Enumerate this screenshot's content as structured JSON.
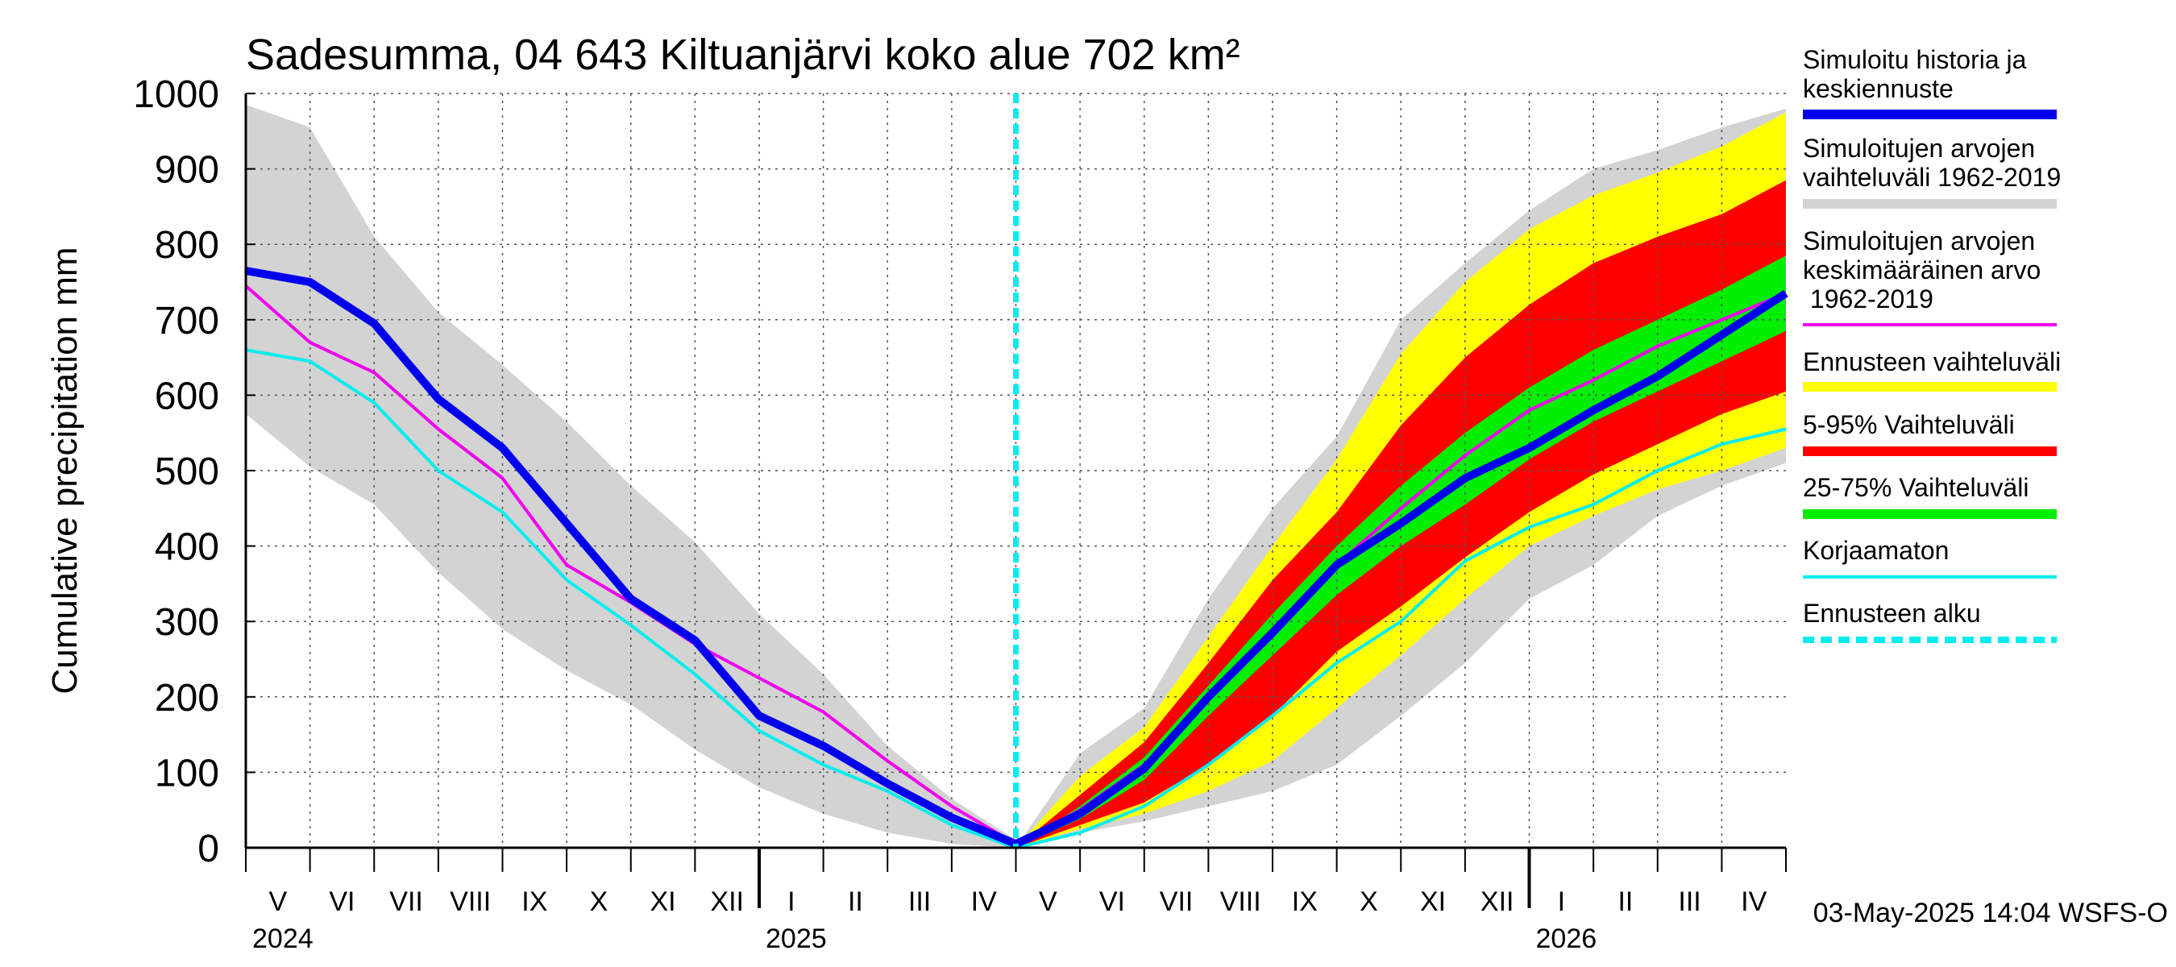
{
  "chart_data": {
    "type": "area",
    "title": "Sadesumma, 04 643 Kiltuanjärvi koko alue 702 km²",
    "ylabel": "Cumulative precipitation   mm",
    "xlabel": "",
    "ylim": [
      0,
      1000
    ],
    "y_ticks": [
      0,
      100,
      200,
      300,
      400,
      500,
      600,
      700,
      800,
      900,
      1000
    ],
    "months": [
      "V",
      "VI",
      "VII",
      "VIII",
      "IX",
      "X",
      "XI",
      "XII",
      "I",
      "II",
      "III",
      "IV",
      "V",
      "VI",
      "VII",
      "VIII",
      "IX",
      "X",
      "XI",
      "XII",
      "I",
      "II",
      "III",
      "IV"
    ],
    "years": [
      "2024",
      "2025",
      "2026"
    ],
    "x_unit": "month index (0 = start of May 2024, 24 = end of April 2026)",
    "forecast_start_x": 12,
    "timestamp": "03-May-2025 14:04 WSFS-O",
    "legend": [
      {
        "label": "Simuloitu historia ja keskiennuste",
        "color": "#0000ee",
        "style": "thick"
      },
      {
        "label": "Simuloitujen arvojen vaihteluväli 1962-2019",
        "color": "#d3d3d3",
        "style": "thick"
      },
      {
        "label": "Simuloitujen arvojen keskimääräinen arvo    1962-2019",
        "color": "#ee00ee",
        "style": "thin"
      },
      {
        "label": "Ennusteen vaihteluväli",
        "color": "#ffff00",
        "style": "thick"
      },
      {
        "label": "5-95% Vaihteluväli",
        "color": "#ff0000",
        "style": "thick"
      },
      {
        "label": "25-75% Vaihteluväli",
        "color": "#00ee00",
        "style": "thick"
      },
      {
        "label": "Korjaamaton",
        "color": "#00eeee",
        "style": "thin"
      },
      {
        "label": "Ennusteen alku",
        "color": "#00eeee",
        "style": "dashed"
      }
    ],
    "series": [
      {
        "name": "hist_range_upper",
        "x": [
          0,
          1,
          2,
          3,
          4,
          5,
          6,
          7,
          8,
          9,
          10,
          11,
          12
        ],
        "values": [
          985,
          955,
          810,
          710,
          640,
          565,
          480,
          405,
          310,
          230,
          135,
          65,
          10
        ]
      },
      {
        "name": "hist_range_lower",
        "x": [
          0,
          1,
          2,
          3,
          4,
          5,
          6,
          7,
          8,
          9,
          10,
          11,
          12
        ],
        "values": [
          575,
          505,
          455,
          365,
          290,
          235,
          190,
          130,
          80,
          45,
          20,
          5,
          0
        ]
      },
      {
        "name": "Simuloitu historia ja keskiennuste",
        "x": [
          0,
          1,
          2,
          3,
          4,
          5,
          6,
          7,
          8,
          9,
          10,
          11,
          12,
          13,
          14,
          15,
          16,
          17,
          18,
          19,
          20,
          21,
          22,
          23,
          24
        ],
        "values": [
          765,
          750,
          695,
          595,
          530,
          430,
          330,
          275,
          175,
          135,
          85,
          40,
          5,
          45,
          105,
          200,
          285,
          375,
          430,
          490,
          530,
          580,
          625,
          680,
          735
        ]
      },
      {
        "name": "Simuloitujen arvojen keskimääräinen arvo 1962-2019",
        "x": [
          0,
          1,
          2,
          3,
          4,
          5,
          6,
          7,
          8,
          9,
          10,
          11,
          12,
          13,
          14,
          15,
          16,
          17,
          18,
          19,
          20,
          21,
          22,
          23,
          24
        ],
        "values": [
          745,
          670,
          630,
          555,
          490,
          375,
          325,
          270,
          225,
          180,
          115,
          55,
          5,
          50,
          110,
          200,
          290,
          375,
          450,
          520,
          580,
          620,
          665,
          700,
          735
        ]
      },
      {
        "name": "Korjaamaton",
        "x": [
          0,
          1,
          2,
          3,
          4,
          5,
          6,
          7,
          8,
          9,
          10,
          11,
          12,
          13,
          14,
          15,
          16,
          17,
          18,
          19,
          20,
          21,
          22,
          23,
          24
        ],
        "values": [
          660,
          645,
          590,
          500,
          445,
          355,
          295,
          230,
          155,
          110,
          75,
          30,
          0,
          20,
          55,
          110,
          175,
          245,
          300,
          380,
          425,
          455,
          500,
          535,
          555
        ]
      },
      {
        "name": "sim_range_upper",
        "x": [
          12,
          13,
          14,
          15,
          16,
          17,
          18,
          19,
          20,
          21,
          22,
          23,
          24
        ],
        "values": [
          0,
          125,
          185,
          330,
          450,
          545,
          700,
          775,
          845,
          900,
          925,
          955,
          980
        ]
      },
      {
        "name": "sim_range_lower",
        "x": [
          12,
          13,
          14,
          15,
          16,
          17,
          18,
          19,
          20,
          21,
          22,
          23,
          24
        ],
        "values": [
          0,
          20,
          35,
          55,
          75,
          110,
          175,
          245,
          330,
          375,
          440,
          480,
          510
        ]
      },
      {
        "name": "Ennusteen vaihteluväli upper",
        "x": [
          12,
          13,
          14,
          15,
          16,
          17,
          18,
          19,
          20,
          21,
          22,
          23,
          24
        ],
        "values": [
          0,
          95,
          160,
          280,
          400,
          515,
          655,
          750,
          820,
          865,
          895,
          930,
          975
        ]
      },
      {
        "name": "Ennusteen vaihteluväli lower",
        "x": [
          12,
          13,
          14,
          15,
          16,
          17,
          18,
          19,
          20,
          21,
          22,
          23,
          24
        ],
        "values": [
          0,
          25,
          45,
          75,
          115,
          185,
          255,
          330,
          400,
          440,
          475,
          500,
          530
        ]
      },
      {
        "name": "5-95% upper",
        "x": [
          12,
          13,
          14,
          15,
          16,
          17,
          18,
          19,
          20,
          21,
          22,
          23,
          24
        ],
        "values": [
          0,
          70,
          140,
          245,
          355,
          445,
          560,
          650,
          720,
          775,
          810,
          840,
          885
        ]
      },
      {
        "name": "5-95% lower",
        "x": [
          12,
          13,
          14,
          15,
          16,
          17,
          18,
          19,
          20,
          21,
          22,
          23,
          24
        ],
        "values": [
          0,
          30,
          60,
          110,
          175,
          260,
          320,
          385,
          445,
          495,
          535,
          575,
          605
        ]
      },
      {
        "name": "25-75% upper",
        "x": [
          12,
          13,
          14,
          15,
          16,
          17,
          18,
          19,
          20,
          21,
          22,
          23,
          24
        ],
        "values": [
          0,
          55,
          120,
          215,
          310,
          400,
          480,
          550,
          610,
          660,
          700,
          740,
          785
        ]
      },
      {
        "name": "25-75% lower",
        "x": [
          12,
          13,
          14,
          15,
          16,
          17,
          18,
          19,
          20,
          21,
          22,
          23,
          24
        ],
        "values": [
          0,
          38,
          90,
          175,
          255,
          335,
          400,
          455,
          515,
          565,
          605,
          645,
          685
        ]
      }
    ]
  }
}
